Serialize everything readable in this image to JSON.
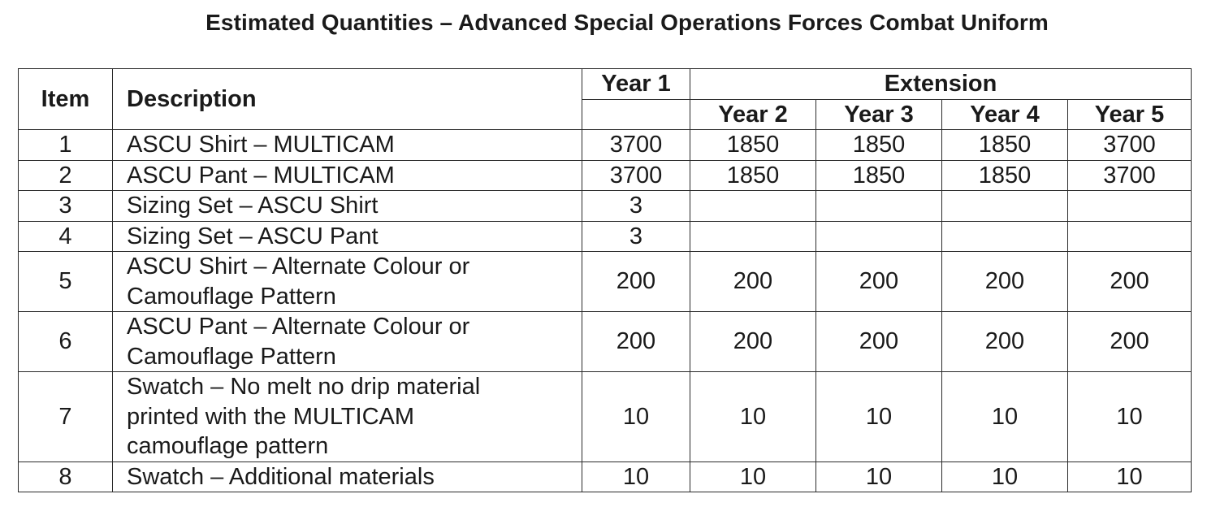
{
  "title": "Estimated Quantities – Advanced Special Operations Forces Combat Uniform",
  "header": {
    "item": "Item",
    "description": "Description",
    "year1": "Year 1",
    "extension": "Extension",
    "years": [
      "Year 2",
      "Year 3",
      "Year 4",
      "Year 5"
    ]
  },
  "rows": [
    {
      "item": "1",
      "description": [
        "ASCU Shirt – MULTICAM"
      ],
      "values": [
        "3700",
        "1850",
        "1850",
        "1850",
        "3700"
      ]
    },
    {
      "item": "2",
      "description": [
        "ASCU Pant – MULTICAM"
      ],
      "values": [
        "3700",
        "1850",
        "1850",
        "1850",
        "3700"
      ]
    },
    {
      "item": "3",
      "description": [
        "Sizing Set – ASCU Shirt"
      ],
      "values": [
        "3",
        "",
        "",
        "",
        ""
      ]
    },
    {
      "item": "4",
      "description": [
        "Sizing Set – ASCU Pant"
      ],
      "values": [
        "3",
        "",
        "",
        "",
        ""
      ]
    },
    {
      "item": "5",
      "description": [
        "ASCU Shirt – Alternate Colour or",
        "Camouflage Pattern"
      ],
      "values": [
        "200",
        "200",
        "200",
        "200",
        "200"
      ]
    },
    {
      "item": "6",
      "description": [
        "ASCU Pant – Alternate Colour or",
        "Camouflage Pattern"
      ],
      "values": [
        "200",
        "200",
        "200",
        "200",
        "200"
      ]
    },
    {
      "item": "7",
      "description": [
        "Swatch – No melt no drip material",
        "printed with the MULTICAM",
        "camouflage pattern"
      ],
      "values": [
        "10",
        "10",
        "10",
        "10",
        "10"
      ]
    },
    {
      "item": "8",
      "description": [
        "Swatch – Additional materials"
      ],
      "values": [
        "10",
        "10",
        "10",
        "10",
        "10"
      ]
    }
  ]
}
